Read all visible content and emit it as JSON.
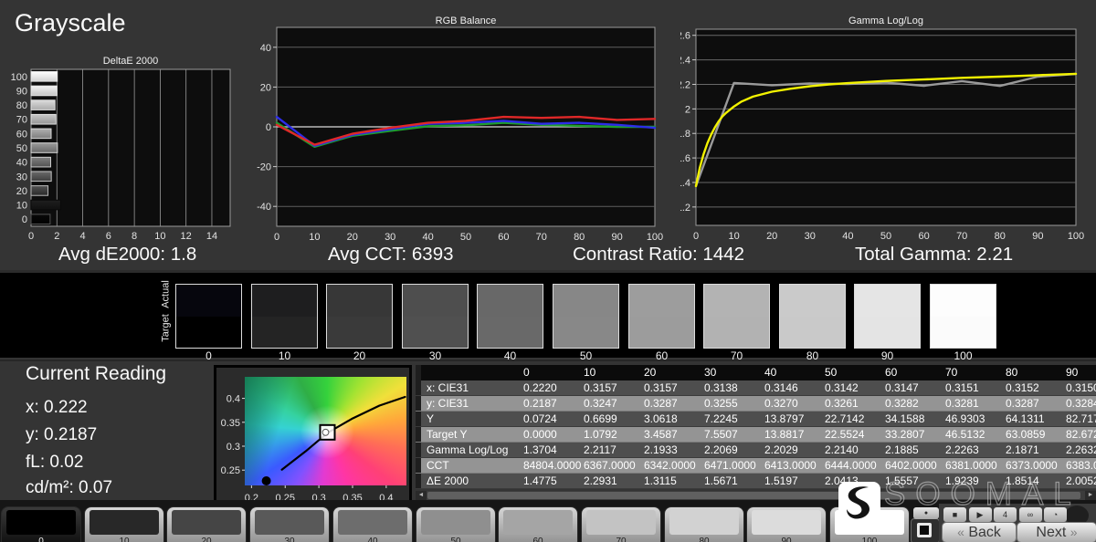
{
  "header": {
    "title": "Grayscale"
  },
  "summary": {
    "avg_de": "Avg dE2000: 1.8",
    "avg_cct": "Avg CCT: 6393",
    "contrast": "Contrast Ratio: 1442",
    "total_gamma": "Total Gamma: 2.21"
  },
  "chart_data": [
    {
      "type": "bar",
      "orientation": "horizontal",
      "title": "DeltaE 2000",
      "categories": [
        "100",
        "90",
        "80",
        "70",
        "60",
        "50",
        "40",
        "30",
        "20",
        "10",
        "0"
      ],
      "values": [
        2.03,
        2.0052,
        1.8514,
        1.9239,
        1.5557,
        2.0413,
        1.5197,
        1.5671,
        1.3115,
        2.2931,
        1.4775
      ],
      "xticks": [
        "0",
        "2",
        "4",
        "6",
        "8",
        "10",
        "12",
        "14"
      ],
      "xlim": [
        0,
        15.4
      ],
      "bar_colors": [
        [
          "#ffffff",
          "#d2d2d2"
        ],
        [
          "#f2f2f2",
          "#c4c4c4"
        ],
        [
          "#dcdcdc",
          "#aaaaaa"
        ],
        [
          "#c8c8c8",
          "#969696"
        ],
        [
          "#b0b0b0",
          "#7e7e7e"
        ],
        [
          "#9a9a9a",
          "#686868"
        ],
        [
          "#828282",
          "#525252"
        ],
        [
          "#6a6a6a",
          "#3e3e3e"
        ],
        [
          "#525252",
          "#2a2a2a"
        ],
        [
          "#1f1f1f",
          "#101010"
        ],
        [
          "#0a0a0a",
          "#000000"
        ]
      ],
      "bar_strokes": [
        "#e6e6e6",
        "#e6e6e6",
        "#e0e0e0",
        "#e0e0e0",
        "#d8d8d8",
        "#d8d8d8",
        "#cccccc",
        "#c4c4c4",
        "#bbbbbb",
        "#0a0a0a",
        "#555555"
      ]
    },
    {
      "type": "line",
      "title": "RGB Balance",
      "x": [
        0,
        10,
        20,
        30,
        40,
        50,
        60,
        70,
        80,
        90,
        100
      ],
      "xticks": [
        "0",
        "10",
        "20",
        "30",
        "40",
        "50",
        "60",
        "70",
        "80",
        "90",
        "100"
      ],
      "yticks": [
        "40",
        "20",
        "0",
        "-20",
        "-40"
      ],
      "ylim": [
        -50,
        50
      ],
      "series": [
        {
          "name": "green",
          "color": "#1e9e2e",
          "values": [
            2,
            -10,
            -4.5,
            -2,
            0.3,
            0.8,
            2,
            1,
            0.5,
            0,
            0
          ]
        },
        {
          "name": "blue",
          "color": "#2c2ce8",
          "values": [
            5,
            -9.5,
            -4,
            -1.2,
            1.5,
            2,
            3,
            1.5,
            2,
            1,
            -0.5
          ]
        },
        {
          "name": "red",
          "color": "#e02828",
          "values": [
            1,
            -9,
            -3.5,
            -0.5,
            2,
            3,
            5,
            4.5,
            5,
            3.5,
            4
          ]
        }
      ]
    },
    {
      "type": "line",
      "title": "Gamma Log/Log",
      "x": [
        0,
        10,
        20,
        30,
        40,
        50,
        60,
        70,
        80,
        90,
        100
      ],
      "xticks": [
        "0",
        "10",
        "20",
        "30",
        "40",
        "50",
        "60",
        "70",
        "80",
        "90",
        "100"
      ],
      "yticks": [
        "2.6",
        "2.4",
        "2.2",
        "2",
        "1.8",
        "1.6",
        "1.4",
        "1.2"
      ],
      "ylim": [
        1.05,
        2.65
      ],
      "series": [
        {
          "name": "measured",
          "color": "#9a9a9a",
          "values": [
            1.3704,
            2.2117,
            2.1933,
            2.2069,
            2.2029,
            2.214,
            2.1885,
            2.2263,
            2.1871,
            2.2632,
            2.285
          ]
        },
        {
          "name": "target",
          "color": "#f2f200",
          "x": [
            0,
            1,
            2,
            3,
            4,
            5,
            6,
            7,
            8,
            10,
            12,
            15,
            20,
            25,
            30,
            35,
            40,
            50,
            60,
            70,
            80,
            90,
            100
          ],
          "values": [
            1.37,
            1.52,
            1.63,
            1.72,
            1.79,
            1.85,
            1.9,
            1.94,
            1.97,
            2.02,
            2.06,
            2.1,
            2.14,
            2.165,
            2.185,
            2.2,
            2.21,
            2.228,
            2.24,
            2.253,
            2.263,
            2.275,
            2.286
          ]
        }
      ]
    }
  ],
  "swatch_band": {
    "actual_label": "Actual",
    "target_label": "Target",
    "levels": [
      {
        "label": "0",
        "actual": "#06060d",
        "target": "#000000"
      },
      {
        "label": "10",
        "actual": "#1e1e1f",
        "target": "#242424"
      },
      {
        "label": "20",
        "actual": "#373737",
        "target": "#3a3a3a"
      },
      {
        "label": "30",
        "actual": "#4e4e4e",
        "target": "#505050"
      },
      {
        "label": "40",
        "actual": "#686868",
        "target": "#696969"
      },
      {
        "label": "50",
        "actual": "#878787",
        "target": "#888888"
      },
      {
        "label": "60",
        "actual": "#9d9d9d",
        "target": "#9c9c9c"
      },
      {
        "label": "70",
        "actual": "#b3b3b3",
        "target": "#b2b2b2"
      },
      {
        "label": "80",
        "actual": "#cacaca",
        "target": "#c9c9c9"
      },
      {
        "label": "90",
        "actual": "#e5e5e5",
        "target": "#e4e4e4"
      },
      {
        "label": "100",
        "actual": "#fdfdfd",
        "target": "#fbfbfb"
      }
    ]
  },
  "current_reading": {
    "title": "Current Reading",
    "lines": [
      "x: 0.222",
      "y: 0.2187",
      "fL: 0.02",
      "cd/m²: 0.07"
    ]
  },
  "cie": {
    "xticks": [
      "0.2",
      "0.25",
      "0.3",
      "0.35",
      "0.4"
    ],
    "yticks": [
      "0.4",
      "0.35",
      "0.3",
      "0.25"
    ],
    "xlim": [
      0.19,
      0.43
    ],
    "ylim": [
      0.218,
      0.445
    ],
    "locus": [
      [
        0.245,
        0.251
      ],
      [
        0.28,
        0.289
      ],
      [
        0.313,
        0.328
      ],
      [
        0.35,
        0.358
      ],
      [
        0.39,
        0.385
      ],
      [
        0.428,
        0.403
      ]
    ],
    "white_point": [
      0.3127,
      0.329
    ],
    "reading_point": [
      0.222,
      0.2187
    ]
  },
  "table": {
    "columns": [
      "0",
      "10",
      "20",
      "30",
      "40",
      "50",
      "60",
      "70",
      "80",
      "90"
    ],
    "rows": [
      {
        "label": "x: CIE31",
        "values": [
          "0.2220",
          "0.3157",
          "0.3157",
          "0.3138",
          "0.3146",
          "0.3142",
          "0.3147",
          "0.3151",
          "0.3152",
          "0.3150"
        ]
      },
      {
        "label": "y: CIE31",
        "values": [
          "0.2187",
          "0.3247",
          "0.3287",
          "0.3255",
          "0.3270",
          "0.3261",
          "0.3282",
          "0.3281",
          "0.3287",
          "0.3284"
        ]
      },
      {
        "label": "Y",
        "values": [
          "0.0724",
          "0.6699",
          "3.0618",
          "7.2245",
          "13.8797",
          "22.7142",
          "34.1588",
          "46.9303",
          "64.1311",
          "82.717"
        ]
      },
      {
        "label": "Target Y",
        "values": [
          "0.0000",
          "1.0792",
          "3.4587",
          "7.5507",
          "13.8817",
          "22.5524",
          "33.2807",
          "46.5132",
          "63.0859",
          "82.672"
        ]
      },
      {
        "label": "Gamma Log/Log",
        "values": [
          "1.3704",
          "2.2117",
          "2.1933",
          "2.2069",
          "2.2029",
          "2.2140",
          "2.1885",
          "2.2263",
          "2.1871",
          "2.2632"
        ]
      },
      {
        "label": "CCT",
        "values": [
          "84804.0000",
          "6367.0000",
          "6342.0000",
          "6471.0000",
          "6413.0000",
          "6444.0000",
          "6402.0000",
          "6381.0000",
          "6373.0000",
          "6383.0"
        ]
      },
      {
        "label": "ΔE 2000",
        "values": [
          "1.4775",
          "2.2931",
          "1.3115",
          "1.5671",
          "1.5197",
          "2.0413",
          "1.5557",
          "1.9239",
          "1.8514",
          "2.0052"
        ]
      }
    ]
  },
  "bottom_tiles": {
    "selected": 0,
    "levels": [
      {
        "label": "0",
        "color": "#000000"
      },
      {
        "label": "10",
        "color": "#282828"
      },
      {
        "label": "20",
        "color": "#454545"
      },
      {
        "label": "30",
        "color": "#595959"
      },
      {
        "label": "40",
        "color": "#6d6d6d"
      },
      {
        "label": "50",
        "color": "#8f8f8f"
      },
      {
        "label": "60",
        "color": "#a5a5a5"
      },
      {
        "label": "70",
        "color": "#c3c3c3"
      },
      {
        "label": "80",
        "color": "#d2d2d2"
      },
      {
        "label": "90",
        "color": "#dcdcdc"
      },
      {
        "label": "100",
        "color": "#ffffff"
      }
    ]
  },
  "toolbar": {
    "icons": [
      {
        "name": "stop-icon",
        "glyph": "■"
      },
      {
        "name": "play-icon",
        "glyph": "▶"
      },
      {
        "name": "pattern-page-icon",
        "glyph": "4"
      },
      {
        "name": "loop-icon",
        "glyph": "∞"
      },
      {
        "name": "timer-icon",
        "glyph": "◔"
      }
    ],
    "eject_glyph": "●",
    "back_chevron": "«",
    "next_chevron": "»",
    "back_label": "Back",
    "next_label": "Next",
    "scroll_left": "◄",
    "scroll_right": "►"
  },
  "watermark": {
    "text": "SOOMAL"
  },
  "colors": {
    "background": "#343434",
    "plot_bg": "#0d0d0d",
    "band_bg": "#000000",
    "row_dark": "#4e4e4e",
    "row_light": "#949494",
    "red": "#e02828",
    "green": "#1e9e2e",
    "blue": "#2c2ce8",
    "yellow": "#f2f200",
    "gray_line": "#9a9a9a"
  }
}
